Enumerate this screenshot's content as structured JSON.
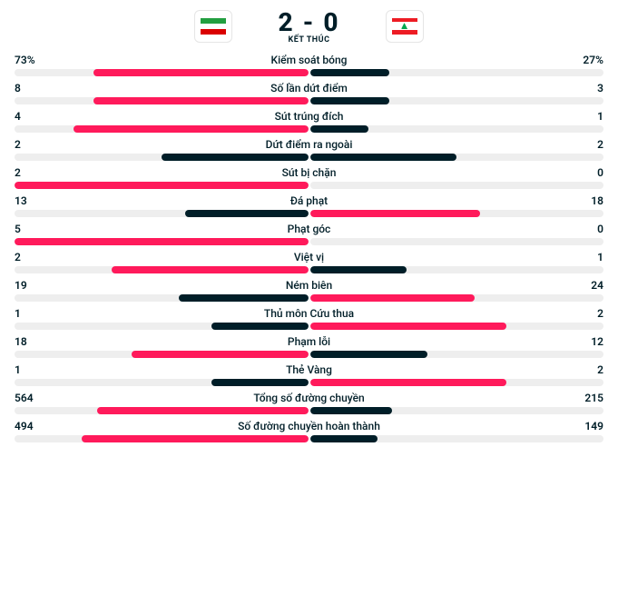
{
  "colors": {
    "winner": "#ff1a5b",
    "loser": "#001e28",
    "track": "#eeeeee",
    "text": "#001e28",
    "bg": "#ffffff"
  },
  "header": {
    "score": "2 - 0",
    "status": "KẾT THÚC",
    "home_flag": "iran",
    "away_flag": "lebanon"
  },
  "stats": [
    {
      "label": "Kiểm soát bóng",
      "home": "73%",
      "away": "27%",
      "home_pct": 73,
      "away_pct": 27,
      "winner": "home"
    },
    {
      "label": "Số lần dứt điểm",
      "home": "8",
      "away": "3",
      "home_pct": 73,
      "away_pct": 27,
      "winner": "home"
    },
    {
      "label": "Sút trúng đích",
      "home": "4",
      "away": "1",
      "home_pct": 80,
      "away_pct": 20,
      "winner": "home"
    },
    {
      "label": "Dứt điểm ra ngoài",
      "home": "2",
      "away": "2",
      "home_pct": 50,
      "away_pct": 50,
      "winner": "none"
    },
    {
      "label": "Sút bị chặn",
      "home": "2",
      "away": "0",
      "home_pct": 100,
      "away_pct": 0,
      "winner": "home"
    },
    {
      "label": "Đá phạt",
      "home": "13",
      "away": "18",
      "home_pct": 42,
      "away_pct": 58,
      "winner": "away"
    },
    {
      "label": "Phạt góc",
      "home": "5",
      "away": "0",
      "home_pct": 100,
      "away_pct": 0,
      "winner": "home"
    },
    {
      "label": "Việt vị",
      "home": "2",
      "away": "1",
      "home_pct": 67,
      "away_pct": 33,
      "winner": "home"
    },
    {
      "label": "Ném biên",
      "home": "19",
      "away": "24",
      "home_pct": 44,
      "away_pct": 56,
      "winner": "away"
    },
    {
      "label": "Thủ môn Cứu thua",
      "home": "1",
      "away": "2",
      "home_pct": 33,
      "away_pct": 67,
      "winner": "away"
    },
    {
      "label": "Phạm lỗi",
      "home": "18",
      "away": "12",
      "home_pct": 60,
      "away_pct": 40,
      "winner": "home"
    },
    {
      "label": "Thẻ Vàng",
      "home": "1",
      "away": "2",
      "home_pct": 33,
      "away_pct": 67,
      "winner": "away"
    },
    {
      "label": "Tổng số đường chuyền",
      "home": "564",
      "away": "215",
      "home_pct": 72,
      "away_pct": 28,
      "winner": "home"
    },
    {
      "label": "Số đường chuyền hoàn thành",
      "home": "494",
      "away": "149",
      "home_pct": 77,
      "away_pct": 23,
      "winner": "home"
    }
  ]
}
